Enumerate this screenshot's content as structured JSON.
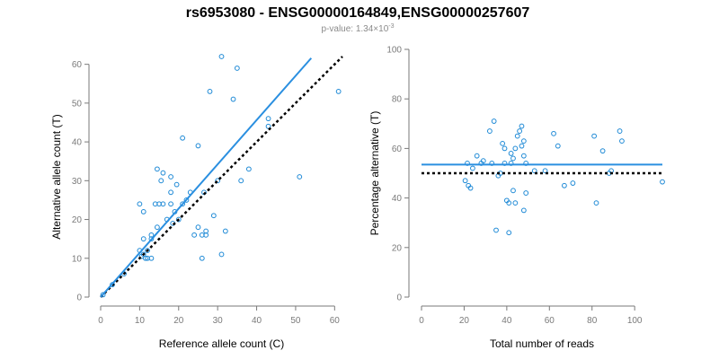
{
  "figure": {
    "title": "rs6953080 - ENSG00000164849,ENSG00000257607",
    "subtitle_prefix": "p-value: 1.34×10",
    "subtitle_exponent": "-3"
  },
  "colors": {
    "points": "#1f8ad6",
    "fit_line": "#2a8fe0",
    "reference_line": "#000000",
    "axis": "#7a7a7a"
  },
  "chart_data": [
    {
      "type": "scatter",
      "title": "",
      "xlabel": "Reference allele count (C)",
      "ylabel": "Alternative allele count (T)",
      "xlim": [
        0,
        62
      ],
      "ylim": [
        0,
        62
      ],
      "xticks": [
        0,
        10,
        20,
        30,
        40,
        50,
        60
      ],
      "yticks": [
        0,
        10,
        20,
        30,
        40,
        50,
        60
      ],
      "points": [
        [
          0.6,
          0.6
        ],
        [
          3,
          3.2
        ],
        [
          6,
          6
        ],
        [
          10,
          12
        ],
        [
          10,
          24
        ],
        [
          10.5,
          10.5
        ],
        [
          11,
          15
        ],
        [
          11,
          22
        ],
        [
          11,
          11
        ],
        [
          11.5,
          10
        ],
        [
          12,
          10
        ],
        [
          12,
          12
        ],
        [
          13,
          10
        ],
        [
          13,
          15
        ],
        [
          13,
          16
        ],
        [
          14,
          24
        ],
        [
          14.5,
          18
        ],
        [
          15,
          24
        ],
        [
          14.5,
          33
        ],
        [
          15.5,
          30
        ],
        [
          16,
          24
        ],
        [
          16,
          32
        ],
        [
          17,
          20
        ],
        [
          18,
          24
        ],
        [
          18,
          27
        ],
        [
          18,
          31
        ],
        [
          18.5,
          19
        ],
        [
          19,
          22
        ],
        [
          19.5,
          29
        ],
        [
          20,
          20
        ],
        [
          21,
          41
        ],
        [
          21,
          24
        ],
        [
          22,
          25
        ],
        [
          23,
          27
        ],
        [
          24,
          16
        ],
        [
          25,
          18
        ],
        [
          25,
          39
        ],
        [
          26,
          16
        ],
        [
          26,
          10
        ],
        [
          26.5,
          27
        ],
        [
          27,
          16
        ],
        [
          27,
          17
        ],
        [
          28,
          53
        ],
        [
          29,
          21
        ],
        [
          30,
          30
        ],
        [
          31,
          62
        ],
        [
          31,
          11
        ],
        [
          32,
          17
        ],
        [
          34,
          51
        ],
        [
          35,
          59
        ],
        [
          36,
          30
        ],
        [
          38,
          33
        ],
        [
          43,
          44
        ],
        [
          43,
          46
        ],
        [
          51,
          31
        ],
        [
          61,
          53
        ]
      ],
      "fit_line": [
        [
          0,
          0
        ],
        [
          54,
          61.6
        ]
      ],
      "reference_line": [
        [
          0,
          0
        ],
        [
          62,
          62
        ]
      ]
    },
    {
      "type": "scatter",
      "title": "",
      "xlabel": "Total number of reads",
      "ylabel": "Percentage alternative (T)",
      "xlim": [
        0,
        113
      ],
      "ylim": [
        0,
        100
      ],
      "xticks": [
        0,
        20,
        40,
        60,
        80,
        100
      ],
      "yticks": [
        0,
        20,
        40,
        60,
        80,
        100
      ],
      "points": [
        [
          20.5,
          47
        ],
        [
          21.5,
          54
        ],
        [
          22,
          45
        ],
        [
          23,
          44
        ],
        [
          24,
          52
        ],
        [
          26,
          57
        ],
        [
          28,
          54
        ],
        [
          29,
          55
        ],
        [
          32,
          67
        ],
        [
          33,
          54
        ],
        [
          34,
          71
        ],
        [
          35,
          27
        ],
        [
          36,
          49
        ],
        [
          37,
          50
        ],
        [
          38,
          62
        ],
        [
          39,
          60
        ],
        [
          39,
          54
        ],
        [
          40,
          39
        ],
        [
          41,
          26
        ],
        [
          41,
          38
        ],
        [
          42,
          54
        ],
        [
          42,
          58
        ],
        [
          43,
          56
        ],
        [
          43,
          43
        ],
        [
          44,
          38
        ],
        [
          44,
          60
        ],
        [
          45,
          65
        ],
        [
          46,
          67
        ],
        [
          47,
          61
        ],
        [
          47,
          69
        ],
        [
          48,
          35
        ],
        [
          48,
          63
        ],
        [
          48,
          57
        ],
        [
          49,
          54
        ],
        [
          49,
          42
        ],
        [
          53,
          51
        ],
        [
          58,
          51
        ],
        [
          62,
          66
        ],
        [
          64,
          61
        ],
        [
          67,
          45
        ],
        [
          71,
          46
        ],
        [
          81,
          65
        ],
        [
          82,
          38
        ],
        [
          85,
          59
        ],
        [
          88,
          50
        ],
        [
          89,
          51
        ],
        [
          93,
          67
        ],
        [
          94,
          63
        ],
        [
          113,
          46.5
        ]
      ],
      "fit_line": [
        [
          0,
          53.5
        ],
        [
          113,
          53.5
        ]
      ],
      "reference_line": [
        [
          0,
          50
        ],
        [
          113,
          50
        ]
      ]
    }
  ]
}
